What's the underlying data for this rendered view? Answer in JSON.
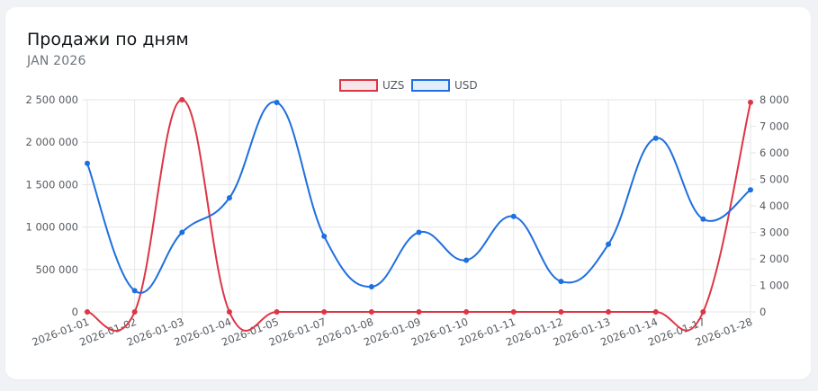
{
  "header": {
    "title": "Продажи по дням",
    "subtitle": "JAN 2026"
  },
  "colors": {
    "uzs": "#dc3545",
    "uzs_fill": "#f8e7e9",
    "usd": "#1e6fe0",
    "usd_fill": "#e3eefc",
    "grid": "#e6e6e6"
  },
  "chart_data": {
    "type": "line",
    "title": "Продажи по дням",
    "subtitle": "JAN 2026",
    "categories": [
      "2026-01-01",
      "2026-01-02",
      "2026-01-03",
      "2026-01-04",
      "2026-01-05",
      "2026-01-07",
      "2026-01-08",
      "2026-01-09",
      "2026-01-10",
      "2026-01-11",
      "2026-01-12",
      "2026-01-13",
      "2026-01-14",
      "2026-01-17",
      "2026-01-28"
    ],
    "series": [
      {
        "name": "UZS",
        "axis": "left",
        "values": [
          0,
          0,
          2500000,
          0,
          0,
          0,
          0,
          0,
          0,
          0,
          0,
          0,
          0,
          0,
          2470000
        ]
      },
      {
        "name": "USD",
        "axis": "right",
        "values": [
          5600,
          800,
          3000,
          4300,
          7900,
          2850,
          950,
          3000,
          1950,
          3600,
          1150,
          2550,
          6550,
          3500,
          4600
        ]
      }
    ],
    "y_left": {
      "min": 0,
      "max": 2500000,
      "ticks": [
        "0",
        "500 000",
        "1 000 000",
        "1 500 000",
        "2 000 000",
        "2 500 000"
      ]
    },
    "y_right": {
      "min": 0,
      "max": 8000,
      "ticks": [
        "0",
        "1 000",
        "2 000",
        "3 000",
        "4 000",
        "5 000",
        "6 000",
        "7 000",
        "8 000"
      ]
    },
    "legend": "top-center",
    "grid": true,
    "curve": "smooth"
  }
}
